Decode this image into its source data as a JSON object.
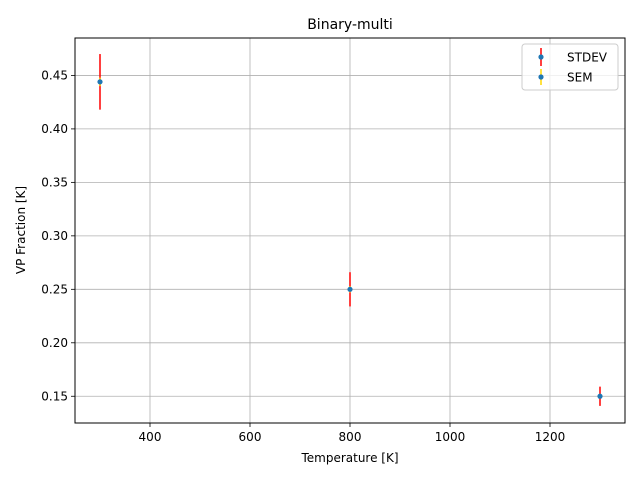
{
  "chart_data": {
    "type": "scatter",
    "title": "Binary-multi",
    "xlabel": "Temperature [K]",
    "ylabel": "VP Fraction [K]",
    "xlim": [
      250,
      1350
    ],
    "ylim": [
      0.125,
      0.485
    ],
    "x_ticks": [
      400,
      600,
      800,
      1000,
      1200
    ],
    "y_ticks": [
      0.15,
      0.2,
      0.25,
      0.3,
      0.35,
      0.4,
      0.45
    ],
    "grid": true,
    "legend_position": "top-right",
    "series": [
      {
        "name": "STDEV",
        "color": "#ff0000",
        "marker_color": "#1f77b4",
        "x": [
          300,
          800,
          1300
        ],
        "y": [
          0.444,
          0.25,
          0.15
        ],
        "err": [
          0.026,
          0.016,
          0.009
        ]
      },
      {
        "name": "SEM",
        "color": "#ffd700",
        "marker_color": "#1f77b4",
        "x": [
          300,
          800,
          1300
        ],
        "y": [
          0.444,
          0.25,
          0.15
        ],
        "err": [
          0.004,
          0.003,
          0.002
        ]
      }
    ]
  }
}
